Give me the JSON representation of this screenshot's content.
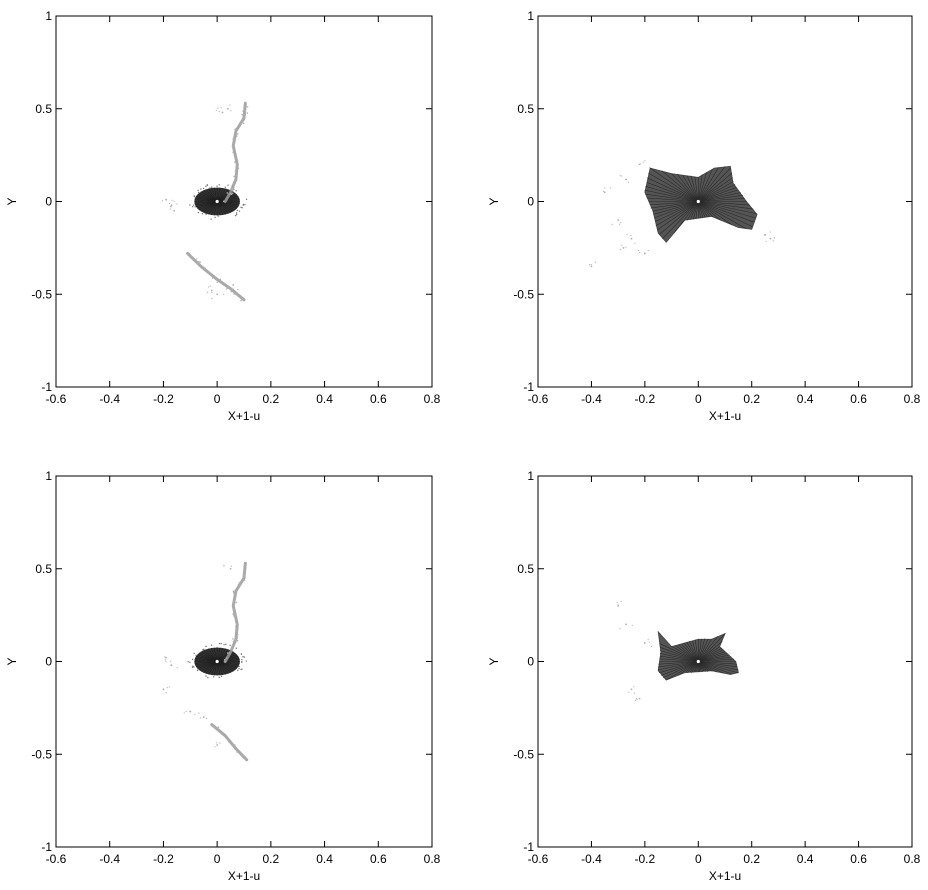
{
  "chart_data": [
    {
      "type": "scatter",
      "panel": "top-left",
      "title": "",
      "xlabel": "X+1-u",
      "ylabel": "Y",
      "xlim": [
        -0.6,
        0.8
      ],
      "ylim": [
        -1,
        1
      ],
      "xticks": [
        "-0.6",
        "-0.4",
        "-0.2",
        "0",
        "0.2",
        "0.4",
        "0.6",
        "0.8"
      ],
      "yticks": [
        "-1",
        "-0.5",
        "0",
        "0.5",
        "1"
      ],
      "grid": false,
      "colors": {
        "core": "#333333",
        "filament": "#9a9a9a",
        "scatter": "#b0b0b0"
      },
      "series": [
        {
          "kind": "ellipse",
          "center": [
            0.0,
            0.0
          ],
          "semi_axes": [
            0.085,
            0.075
          ]
        },
        {
          "kind": "filament",
          "points": [
            [
              0.105,
              0.53
            ],
            [
              0.1,
              0.45
            ],
            [
              0.07,
              0.38
            ],
            [
              0.06,
              0.3
            ],
            [
              0.075,
              0.2
            ],
            [
              0.07,
              0.12
            ],
            [
              0.05,
              0.05
            ],
            [
              0.03,
              0.0
            ]
          ]
        },
        {
          "kind": "filament",
          "points": [
            [
              -0.11,
              -0.28
            ],
            [
              -0.06,
              -0.35
            ],
            [
              0.0,
              -0.42
            ],
            [
              0.05,
              -0.47
            ],
            [
              0.1,
              -0.53
            ]
          ]
        },
        {
          "kind": "scatter",
          "points": [
            [
              -0.17,
              -0.02
            ],
            [
              -0.19,
              0.01
            ],
            [
              -0.16,
              -0.05
            ],
            [
              0.04,
              0.5
            ],
            [
              0.02,
              0.48
            ],
            [
              -0.02,
              -0.48
            ],
            [
              0.0,
              -0.5
            ],
            [
              0.06,
              -0.45
            ],
            [
              -0.1,
              -0.3
            ]
          ]
        }
      ]
    },
    {
      "type": "scatter",
      "panel": "top-right",
      "title": "",
      "xlabel": "X+1-u",
      "ylabel": "Y",
      "xlim": [
        -0.6,
        0.8
      ],
      "ylim": [
        -1,
        1
      ],
      "xticks": [
        "-0.6",
        "-0.4",
        "-0.2",
        "0",
        "0.2",
        "0.4",
        "0.6",
        "0.8"
      ],
      "yticks": [
        "-1",
        "-0.5",
        "0",
        "0.5",
        "1"
      ],
      "grid": false,
      "colors": {
        "core": "#333333",
        "filament": "#9a9a9a",
        "scatter": "#b0b0b0"
      },
      "series": [
        {
          "kind": "region",
          "points": [
            [
              -0.18,
              0.18
            ],
            [
              -0.1,
              0.15
            ],
            [
              0.0,
              0.13
            ],
            [
              0.06,
              0.18
            ],
            [
              0.12,
              0.19
            ],
            [
              0.13,
              0.1
            ],
            [
              0.18,
              0.0
            ],
            [
              0.22,
              -0.07
            ],
            [
              0.2,
              -0.15
            ],
            [
              0.15,
              -0.14
            ],
            [
              0.05,
              -0.08
            ],
            [
              -0.05,
              -0.1
            ],
            [
              -0.12,
              -0.22
            ],
            [
              -0.15,
              -0.17
            ],
            [
              -0.17,
              -0.05
            ],
            [
              -0.2,
              0.05
            ]
          ]
        },
        {
          "kind": "scatter",
          "points": [
            [
              -0.25,
              -0.2
            ],
            [
              -0.3,
              -0.1
            ],
            [
              -0.22,
              0.2
            ],
            [
              -0.4,
              -0.35
            ],
            [
              -0.28,
              -0.25
            ],
            [
              0.25,
              -0.18
            ],
            [
              0.27,
              -0.2
            ],
            [
              -0.35,
              0.05
            ],
            [
              -0.2,
              -0.28
            ],
            [
              -0.27,
              0.12
            ]
          ]
        }
      ]
    },
    {
      "type": "scatter",
      "panel": "bottom-left",
      "title": "",
      "xlabel": "X+1-u",
      "ylabel": "Y",
      "xlim": [
        -0.6,
        0.8
      ],
      "ylim": [
        -1,
        1
      ],
      "xticks": [
        "-0.6",
        "-0.4",
        "-0.2",
        "0",
        "0.2",
        "0.4",
        "0.6",
        "0.8"
      ],
      "yticks": [
        "-1",
        "-0.5",
        "0",
        "0.5",
        "1"
      ],
      "grid": false,
      "colors": {
        "core": "#333333",
        "filament": "#9a9a9a",
        "scatter": "#b0b0b0"
      },
      "series": [
        {
          "kind": "ellipse",
          "center": [
            0.0,
            0.0
          ],
          "semi_axes": [
            0.085,
            0.075
          ]
        },
        {
          "kind": "filament",
          "points": [
            [
              0.105,
              0.53
            ],
            [
              0.1,
              0.45
            ],
            [
              0.07,
              0.38
            ],
            [
              0.06,
              0.3
            ],
            [
              0.075,
              0.2
            ],
            [
              0.07,
              0.12
            ],
            [
              0.05,
              0.05
            ],
            [
              0.03,
              0.0
            ]
          ]
        },
        {
          "kind": "filament",
          "points": [
            [
              -0.02,
              -0.34
            ],
            [
              0.03,
              -0.4
            ],
            [
              0.07,
              -0.47
            ],
            [
              0.11,
              -0.53
            ]
          ]
        },
        {
          "kind": "scatter",
          "points": [
            [
              -0.17,
              -0.02
            ],
            [
              -0.19,
              0.02
            ],
            [
              -0.2,
              -0.15
            ],
            [
              -0.1,
              -0.27
            ],
            [
              0.05,
              0.5
            ],
            [
              0.0,
              -0.45
            ],
            [
              -0.05,
              -0.3
            ]
          ]
        }
      ]
    },
    {
      "type": "scatter",
      "panel": "bottom-right",
      "title": "",
      "xlabel": "X+1-u",
      "ylabel": "Y",
      "xlim": [
        -0.6,
        0.8
      ],
      "ylim": [
        -1,
        1
      ],
      "xticks": [
        "-0.6",
        "-0.4",
        "-0.2",
        "0",
        "0.2",
        "0.4",
        "0.6",
        "0.8"
      ],
      "yticks": [
        "-1",
        "-0.5",
        "0",
        "0.5",
        "1"
      ],
      "grid": false,
      "colors": {
        "core": "#333333",
        "filament": "#9a9a9a",
        "scatter": "#b0b0b0"
      },
      "series": [
        {
          "kind": "region",
          "points": [
            [
              -0.15,
              0.16
            ],
            [
              -0.1,
              0.08
            ],
            [
              0.0,
              0.12
            ],
            [
              0.05,
              0.12
            ],
            [
              0.1,
              0.15
            ],
            [
              0.08,
              0.08
            ],
            [
              0.14,
              0.0
            ],
            [
              0.15,
              -0.06
            ],
            [
              0.12,
              -0.07
            ],
            [
              0.05,
              -0.05
            ],
            [
              -0.05,
              -0.06
            ],
            [
              -0.12,
              -0.1
            ],
            [
              -0.15,
              -0.05
            ],
            [
              -0.14,
              0.05
            ]
          ]
        },
        {
          "kind": "scatter",
          "points": [
            [
              -0.2,
              0.1
            ],
            [
              -0.25,
              -0.15
            ],
            [
              -0.22,
              -0.2
            ],
            [
              -0.3,
              0.3
            ],
            [
              -0.27,
              0.2
            ]
          ]
        }
      ]
    }
  ]
}
